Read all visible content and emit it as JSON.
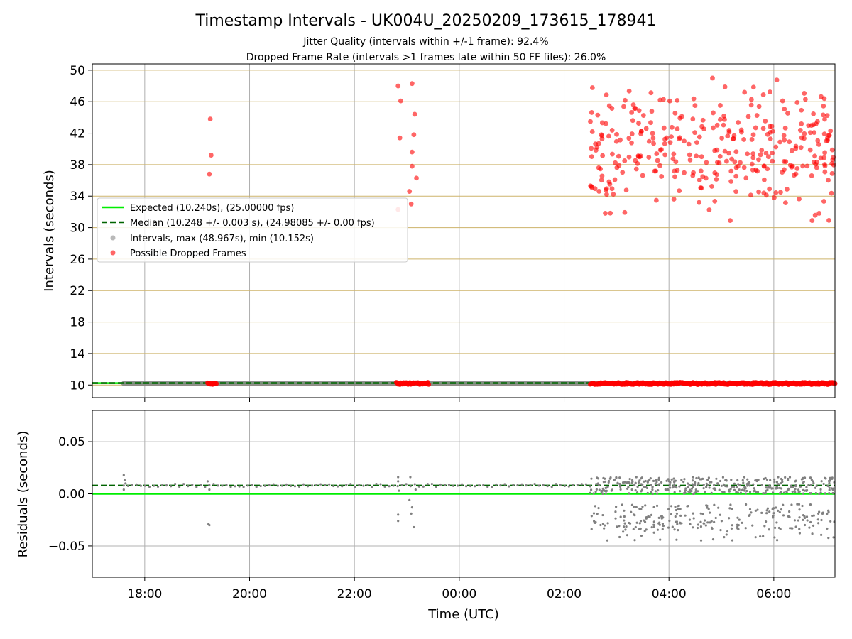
{
  "title": "Timestamp Intervals - UK004U_20250209_173615_178941",
  "subtitle_lines": [
    "Jitter Quality (intervals within +/-1 frame): 92.4%",
    "Dropped Frame Rate (intervals >1 frames late within 50 FF files): 26.0%"
  ],
  "colors": {
    "expected": "#00ee00",
    "median": "#006400",
    "intervals": "#808080",
    "dropped": "#ff0000",
    "hgrid_top": "#cdb36a",
    "grid": "#b0b0b0"
  },
  "chart_data": [
    {
      "type": "scatter",
      "panel": "intervals",
      "ylabel": "Intervals (seconds)",
      "xlim": [
        "17:00",
        "07:10"
      ],
      "ylim": [
        8.4,
        50.8
      ],
      "yticks": [
        10,
        14,
        18,
        22,
        26,
        30,
        34,
        38,
        42,
        46,
        50
      ],
      "grid": true,
      "legend": {
        "placement": "center-left",
        "entries": [
          {
            "key": "expected",
            "label": "Expected (10.240s), (25.00000 fps)",
            "marker": "solid-line"
          },
          {
            "key": "median",
            "label": "Median (10.248 +/- 0.003 s), (24.98085 +/- 0.00 fps)",
            "marker": "dashed-line"
          },
          {
            "key": "intervals",
            "label": "Intervals, max (48.967s), min (10.152s)",
            "marker": "dot"
          },
          {
            "key": "dropped",
            "label": "Possible Dropped Frames",
            "marker": "dot"
          }
        ]
      },
      "expected_interval": 10.24,
      "median_interval": 10.248,
      "interval_band": {
        "start": "17:36",
        "end": "07:10",
        "value": 10.2
      },
      "dropped_clusters_low": [
        {
          "start": "19:12",
          "end": "19:22",
          "value": 10.2
        },
        {
          "start": "22:48",
          "end": "23:25",
          "value": 10.2
        },
        {
          "start": "02:30",
          "end": "07:10",
          "value": 10.2
        }
      ],
      "dropped_points": [
        [
          "19:15",
          43.8
        ],
        [
          "19:16",
          39.2
        ],
        [
          "19:14",
          36.8
        ],
        [
          "22:50",
          48.0
        ],
        [
          "22:52",
          41.4
        ],
        [
          "22:53",
          46.1
        ],
        [
          "22:50",
          32.3
        ],
        [
          "23:06",
          48.3
        ],
        [
          "23:09",
          44.4
        ],
        [
          "23:08",
          41.8
        ],
        [
          "23:06",
          39.6
        ],
        [
          "23:06",
          37.8
        ],
        [
          "23:11",
          36.3
        ],
        [
          "23:03",
          34.6
        ],
        [
          "23:05",
          33.0
        ]
      ],
      "dropped_scatter_region": {
        "start": "02:30",
        "end": "07:10",
        "ymin": 30.9,
        "ymax": 49.0,
        "count": 330
      }
    },
    {
      "type": "scatter",
      "panel": "residuals",
      "ylabel": "Residuals (seconds)",
      "xlabel": "Time (UTC)",
      "xlim": [
        "17:00",
        "07:10"
      ],
      "ylim": [
        -0.08,
        0.08
      ],
      "yticks": [
        -0.05,
        0.0,
        0.05
      ],
      "ytick_labels": [
        "−0.05",
        "0.00",
        "0.05"
      ],
      "xticks": [
        "18:00",
        "20:00",
        "22:00",
        "00:00",
        "02:00",
        "04:00",
        "06:00"
      ],
      "grid": true,
      "expected_residual": 0.0,
      "median_residual": 0.008,
      "clusters": [
        {
          "start": "17:36",
          "end": "02:30",
          "base": 0.008,
          "spread": 0.0015,
          "count": 110
        },
        {
          "start": "02:30",
          "end": "07:10",
          "band_high": [
            0.0,
            0.016
          ],
          "band_low": [
            -0.035,
            -0.01
          ],
          "count": 600
        }
      ],
      "points": [
        [
          "17:36",
          0.018
        ],
        [
          "17:37",
          0.013
        ],
        [
          "17:36",
          0.004
        ],
        [
          "17:38",
          0.01
        ],
        [
          "19:12",
          0.012
        ],
        [
          "19:14",
          0.004
        ],
        [
          "19:13",
          -0.029
        ],
        [
          "19:14",
          -0.03
        ],
        [
          "22:50",
          0.016
        ],
        [
          "22:50",
          0.012
        ],
        [
          "22:51",
          0.003
        ],
        [
          "22:50",
          -0.02
        ],
        [
          "22:50",
          -0.026
        ],
        [
          "23:05",
          -0.019
        ],
        [
          "23:06",
          -0.013
        ],
        [
          "23:08",
          -0.032
        ],
        [
          "23:04",
          0.016
        ],
        [
          "23:10",
          0.004
        ],
        [
          "23:03",
          -0.006
        ]
      ]
    }
  ]
}
